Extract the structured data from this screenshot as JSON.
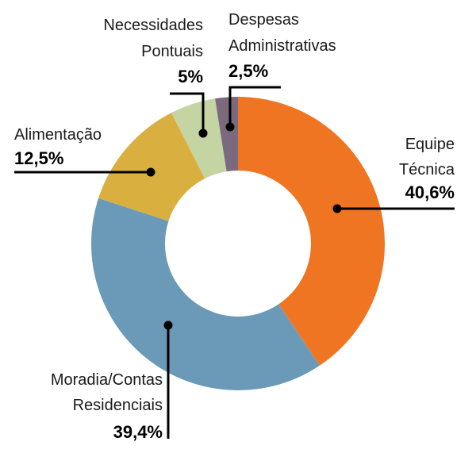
{
  "chart_data": {
    "type": "pie",
    "donut": true,
    "slices": [
      {
        "name": "Equipe Técnica",
        "label_lines": [
          "Equipe",
          "Técnica"
        ],
        "value": 40.6,
        "value_label": "40,6%",
        "color": "#f07522"
      },
      {
        "name": "Moradia/Contas Residenciais",
        "label_lines": [
          "Moradia/Contas",
          "Residenciais"
        ],
        "value": 39.4,
        "value_label": "39,4%",
        "color": "#6a9ab8"
      },
      {
        "name": "Alimentação",
        "label_lines": [
          "Alimentação"
        ],
        "value": 12.5,
        "value_label": "12,5%",
        "color": "#d9b040"
      },
      {
        "name": "Necessidades Pontuais",
        "label_lines": [
          "Necessidades",
          "Pontuais"
        ],
        "value": 5,
        "value_label": "5%",
        "color": "#c5d4a3"
      },
      {
        "name": "Despesas Administrativas",
        "label_lines": [
          "Despesas",
          "Administrativas"
        ],
        "value": 2.5,
        "value_label": "2,5%",
        "color": "#7b6a7e"
      }
    ],
    "start_angle_deg": 0,
    "direction": "clockwise",
    "title": "",
    "legend": "none"
  }
}
